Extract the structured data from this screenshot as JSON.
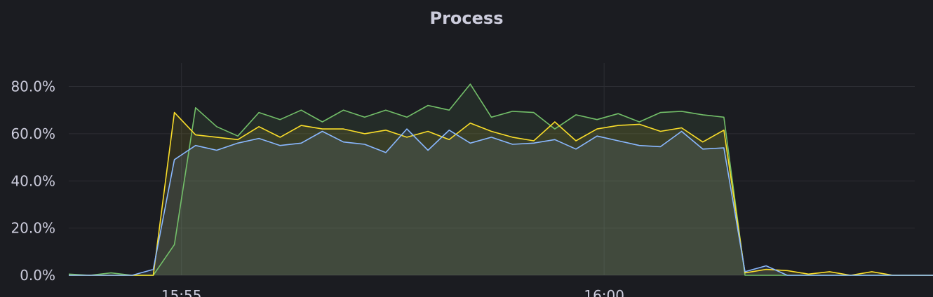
{
  "panel": {
    "title": "Process"
  },
  "chart_data": {
    "type": "area",
    "title": "Process",
    "xlabel": "",
    "ylabel": "",
    "x_start": "15:53:40",
    "x_step_seconds": 15,
    "x_ticks": [
      "15:55",
      "16:00"
    ],
    "x_tick_times": [
      "15:55:00",
      "16:00:00"
    ],
    "x_range": [
      "15:53:40",
      "16:03:55"
    ],
    "ylim": [
      0,
      90
    ],
    "y_ticks": [
      0,
      20,
      40,
      60,
      80
    ],
    "y_tick_labels": [
      "0.0%",
      "20.0%",
      "40.0%",
      "60.0%",
      "80.0%"
    ],
    "grid": true,
    "legend": "none",
    "series": [
      {
        "color": "#73bf69",
        "values": [
          0.5,
          0,
          1,
          0,
          0,
          13,
          71,
          63,
          59,
          69,
          66,
          70,
          65,
          70,
          67,
          70,
          67,
          72,
          70,
          81,
          67,
          69.5,
          69,
          62,
          68,
          66,
          68.5,
          65,
          69,
          69.5,
          68,
          67,
          0,
          0,
          0,
          0,
          0,
          0,
          0,
          0,
          0,
          0
        ]
      },
      {
        "color": "#fade2a",
        "values": [
          0,
          0,
          0,
          0,
          0,
          69,
          59.5,
          58.5,
          57.5,
          63,
          58.5,
          63.5,
          62,
          62,
          60,
          61.5,
          58.5,
          61,
          57.5,
          64.5,
          61,
          58.5,
          57,
          65,
          57,
          62,
          63.5,
          64,
          61,
          62.5,
          56.5,
          61.5,
          1,
          2.5,
          2,
          0.5,
          1.5,
          0,
          1.5,
          0,
          0,
          0
        ]
      },
      {
        "color": "#8ab8ff",
        "values": [
          0,
          0,
          0,
          0,
          2.5,
          49,
          55,
          53,
          56,
          58,
          55,
          56,
          61,
          56.5,
          55.5,
          52,
          62,
          53,
          61.5,
          56,
          58.5,
          55.5,
          56,
          57.5,
          53.5,
          59,
          57,
          55,
          54.5,
          61,
          53.5,
          54,
          1.5,
          4,
          0,
          0,
          0,
          0,
          0,
          0,
          0,
          0
        ]
      }
    ]
  }
}
